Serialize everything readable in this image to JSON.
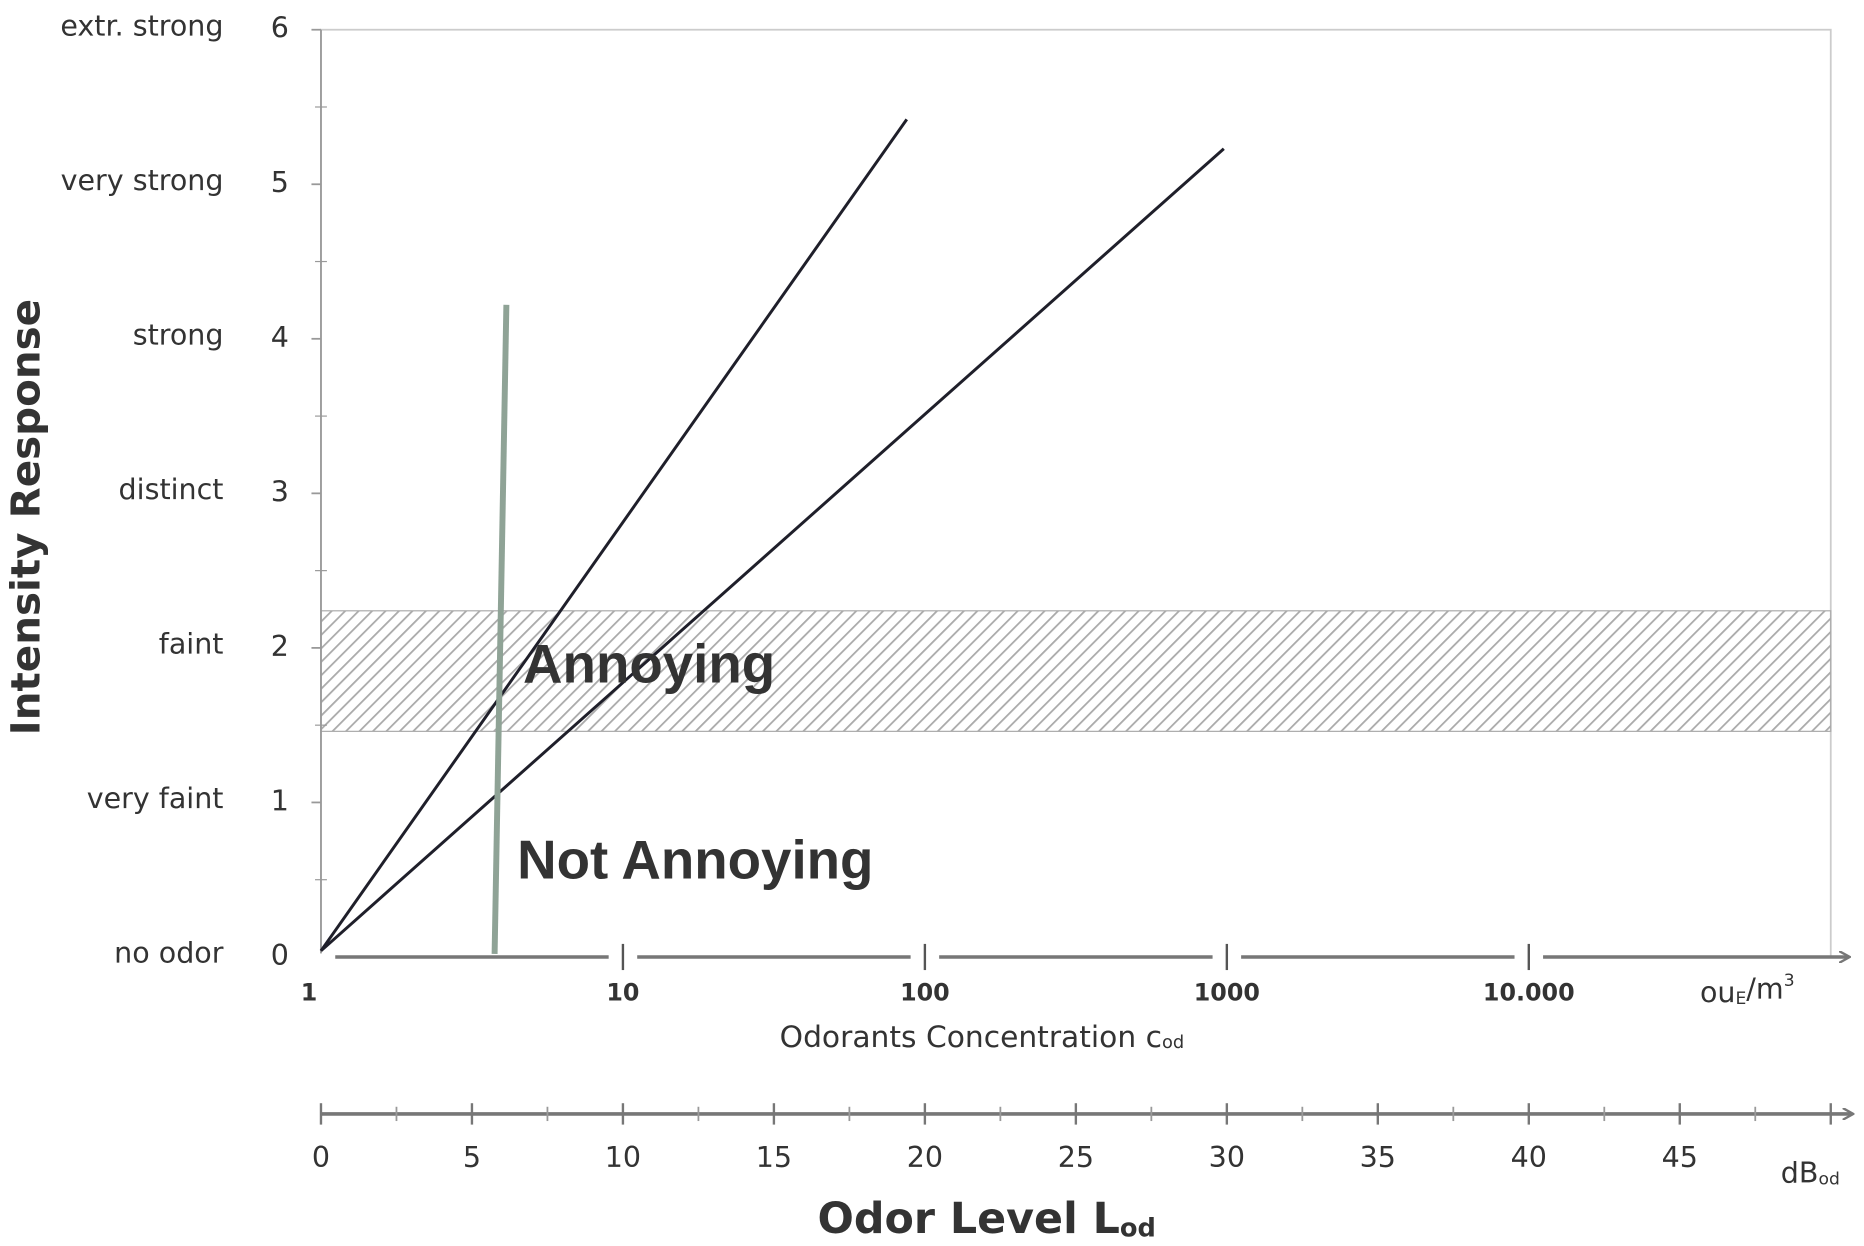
{
  "chart_data": {
    "type": "line",
    "y_label": "Intensity Response",
    "ylim": [
      0,
      6
    ],
    "yticks": [
      0,
      1,
      2,
      3,
      4,
      5,
      6
    ],
    "y_categories": [
      "no odor",
      "very faint",
      "faint",
      "distinct",
      "strong",
      "very strong",
      "extr. strong"
    ],
    "xlim": [
      0,
      50
    ],
    "xticks": [
      0,
      5,
      10,
      15,
      20,
      25,
      30,
      35,
      40,
      45
    ],
    "x_label": {
      "text": "Odor Level L",
      "sub": "od"
    },
    "x_unit": {
      "text": "dB",
      "sub": "od"
    },
    "x2lim": [
      1,
      100000
    ],
    "x2_log": true,
    "x2ticks": [
      1,
      10,
      100,
      1000,
      {
        "value": 10000,
        "label": "10.000"
      }
    ],
    "x2_label": {
      "text": "Odorants Concentration c",
      "sub": "od"
    },
    "x2_unit": {
      "text": "ou",
      "sub": "E",
      "rest": "/m",
      "sup": "3"
    },
    "band": {
      "y": [
        1.46,
        2.24
      ],
      "color": "#aaaaaa"
    },
    "annotations": [
      {
        "text": "Annoying",
        "color": "#ff0000"
      },
      {
        "text": "Not Annoying",
        "color": "#ff0000"
      }
    ],
    "series": [
      {
        "color": "#1f1f2a",
        "x": [
          0,
          19.4
        ],
        "values": [
          0.04,
          5.42
        ]
      },
      {
        "color": "#1f1f2a",
        "x": [
          0,
          29.9
        ],
        "values": [
          0.04,
          5.23
        ]
      },
      {
        "color": "#8fa396",
        "x": [
          5.75,
          6.14
        ],
        "values": [
          0.02,
          4.22
        ]
      }
    ]
  }
}
